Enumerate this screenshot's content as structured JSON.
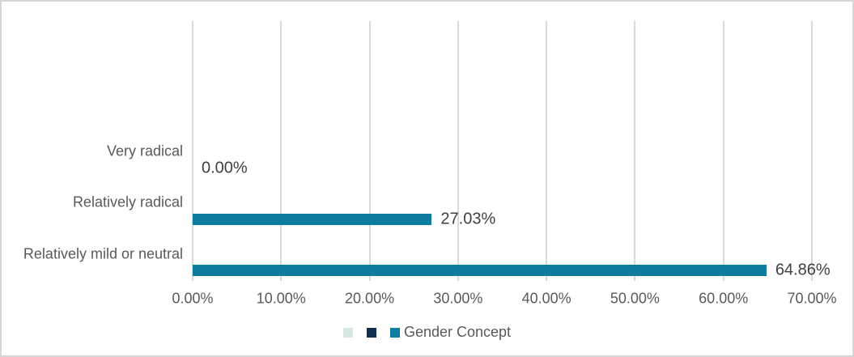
{
  "chart_data": {
    "type": "bar",
    "orientation": "horizontal",
    "title": "",
    "categories": [
      "Very radical",
      "Relatively radical",
      "Relatively mild or neutral"
    ],
    "values": [
      0.0,
      27.03,
      64.86
    ],
    "data_labels": [
      "0.00%",
      "27.03%",
      "64.86%"
    ],
    "series_name": "Gender Concept",
    "xlabel": "",
    "ylabel": "",
    "xlim": [
      0,
      70
    ],
    "x_tick_values": [
      0,
      10,
      20,
      30,
      40,
      50,
      60,
      70
    ],
    "x_ticks": [
      "0.00%",
      "10.00%",
      "20.00%",
      "30.00%",
      "40.00%",
      "50.00%",
      "60.00%",
      "70.00%"
    ],
    "grid": true,
    "legend": {
      "position": "bottom",
      "entries": [
        {
          "label": "",
          "color": "#d5e8e2"
        },
        {
          "label": "",
          "color": "#0e2f4e"
        },
        {
          "label": "Gender Concept",
          "color": "#0e7c9e"
        }
      ]
    },
    "colors": {
      "bar": "#0e7c9e",
      "gridline": "#d9d9d9",
      "axis_text": "#595959",
      "data_label_text": "#404040",
      "frame_border": "#d6d6d6"
    }
  }
}
